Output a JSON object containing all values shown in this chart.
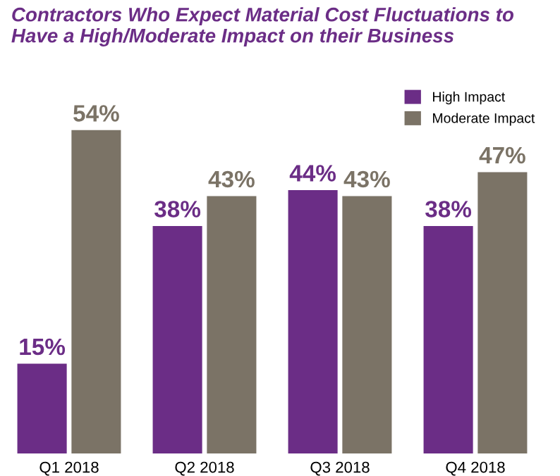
{
  "chart_data": {
    "type": "bar",
    "title": "Contractors Who Expect Material Cost Fluctuations to\nHave a High/Moderate Impact on their Business",
    "categories": [
      "Q1 2018",
      "Q2 2018",
      "Q3 2018",
      "Q4 2018"
    ],
    "series": [
      {
        "name": "High Impact",
        "color": "#6b2d86",
        "values": [
          15,
          38,
          44,
          38
        ],
        "value_labels": [
          "15%",
          "38%",
          "44%",
          "38%"
        ]
      },
      {
        "name": "Moderate Impact",
        "color": "#7b7366",
        "values": [
          54,
          43,
          43,
          47
        ],
        "value_labels": [
          "54%",
          "43%",
          "43%",
          "47%"
        ]
      }
    ],
    "legend": "top right",
    "grid": false
  }
}
